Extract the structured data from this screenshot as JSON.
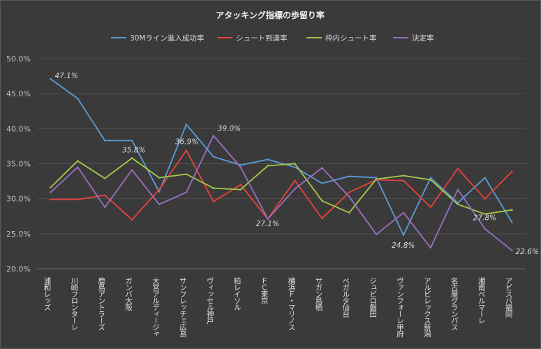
{
  "chart_data": {
    "type": "line",
    "title": "アタッキング指標の歩留り率",
    "xlabel": "",
    "ylabel": "",
    "ylim": [
      0.2,
      0.5
    ],
    "yticks": [
      "50.0%",
      "45.0%",
      "40.0%",
      "35.0%",
      "30.0%",
      "25.0%",
      "20.0%"
    ],
    "ytick_values": [
      0.5,
      0.45,
      0.4,
      0.35,
      0.3,
      0.25,
      0.2
    ],
    "grid": true,
    "legend_position": "top",
    "categories": [
      "浦和レッズ",
      "川崎フロンターレ",
      "鹿島アントラーズ",
      "ガンバ大阪",
      "大宮アルディージャ",
      "サンフレッチェ広島",
      "ヴィッセル神戸",
      "柏レイソル",
      "ＦＣ東京",
      "横浜Ｆ・マリノス",
      "サガン鳥栖",
      "ベガルタ仙台",
      "ジュビロ磐田",
      "ヴァンフォーレ甲府",
      "アルビレックス新潟",
      "名古屋グランパス",
      "湘南ベルマーレ",
      "アビスパ福岡"
    ],
    "series": [
      {
        "name": "30Mライン進入成功率",
        "color": "#5b9bd5",
        "values": [
          0.471,
          0.443,
          0.383,
          0.383,
          0.31,
          0.406,
          0.36,
          0.348,
          0.356,
          0.345,
          0.322,
          0.332,
          0.33,
          0.248,
          0.33,
          0.294,
          0.33,
          0.266
        ]
      },
      {
        "name": "シュート到達率",
        "color": "#e8413c",
        "values": [
          0.299,
          0.299,
          0.305,
          0.27,
          0.313,
          0.369,
          0.296,
          0.32,
          0.271,
          0.326,
          0.272,
          0.309,
          0.327,
          0.326,
          0.288,
          0.343,
          0.3,
          0.339
        ]
      },
      {
        "name": "枠内シュート率",
        "color": "#a5c84a",
        "values": [
          0.316,
          0.354,
          0.329,
          0.358,
          0.33,
          0.335,
          0.315,
          0.313,
          0.347,
          0.35,
          0.297,
          0.28,
          0.328,
          0.333,
          0.327,
          0.292,
          0.278,
          0.284
        ]
      },
      {
        "name": "決定率",
        "color": "#9b6fc0",
        "values": [
          0.309,
          0.345,
          0.288,
          0.341,
          0.292,
          0.309,
          0.39,
          0.345,
          0.271,
          0.314,
          0.344,
          0.303,
          0.249,
          0.28,
          0.23,
          0.313,
          0.257,
          0.226
        ]
      }
    ],
    "data_labels": [
      {
        "text": "47.1%",
        "series": 0,
        "index": 0
      },
      {
        "text": "35.8%",
        "series": 2,
        "index": 3
      },
      {
        "text": "36.9%",
        "series": 1,
        "index": 5
      },
      {
        "text": "39.0%",
        "series": 3,
        "index": 6
      },
      {
        "text": "27.1%",
        "series": 3,
        "index": 8
      },
      {
        "text": "24.8%",
        "series": 0,
        "index": 13
      },
      {
        "text": "27.8%",
        "series": 2,
        "index": 16
      },
      {
        "text": "22.6%",
        "series": 3,
        "index": 17
      }
    ]
  }
}
